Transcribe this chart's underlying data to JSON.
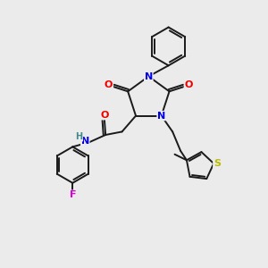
{
  "background_color": "#ebebeb",
  "bond_color": "#1a1a1a",
  "atom_colors": {
    "N": "#0000ee",
    "O": "#ee0000",
    "F": "#dd00dd",
    "S": "#bbbb00",
    "H": "#448888",
    "C": "#1a1a1a"
  },
  "figsize": [
    3.0,
    3.0
  ],
  "dpi": 100
}
